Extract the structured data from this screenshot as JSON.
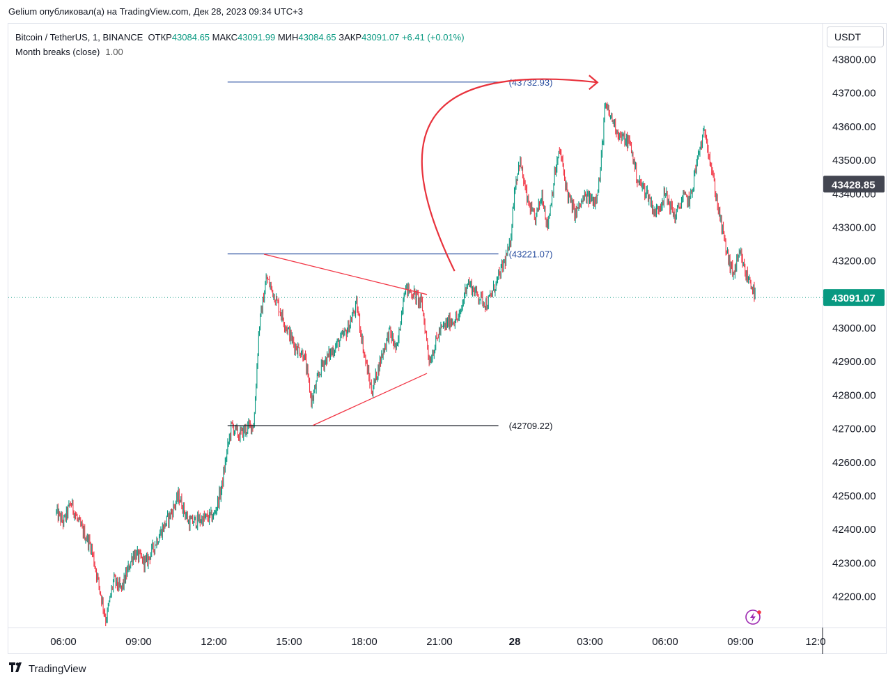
{
  "header": {
    "published_line": "Gelium опубликовал(а) на TradingView.com, Дек 28, 2023 09:34 UTC+3"
  },
  "legend": {
    "symbol": "Bitcoin / TetherUS, 1, BINANCE",
    "open_label": "ОТКР",
    "open_value": "43084.65",
    "high_label": "МАКС",
    "high_value": "43091.99",
    "low_label": "МИН",
    "low_value": "43084.65",
    "close_label": "ЗАКР",
    "close_value": "43091.07",
    "change": "+6.41 (+0.01%)",
    "indicator_name": "Month breaks (close)",
    "indicator_value": "1.00"
  },
  "currency_button": "USDT",
  "footer": {
    "brand": "TradingView"
  },
  "colors": {
    "up": "#089981",
    "down": "#f23645",
    "hline_blue": "#2a4fa0",
    "hline_black": "#131722",
    "arrow": "#e8323c",
    "triangle": "#f23645",
    "badge_price": "#089981",
    "badge_level": "#434651",
    "icon": "#9c27b0"
  },
  "chart_data": {
    "type": "candlestick",
    "ylim": [
      42090,
      43830
    ],
    "y_ticks": [
      42200,
      42300,
      42400,
      42500,
      42600,
      42700,
      42800,
      42900,
      43000,
      43100,
      43200,
      43300,
      43400,
      43500,
      43600,
      43700,
      43800
    ],
    "y_tick_labels": [
      "42200.00",
      "42300.00",
      "42400.00",
      "42500.00",
      "42600.00",
      "42700.00",
      "42800.00",
      "42900.00",
      "43000.00",
      "43100.00",
      "43200.00",
      "43300.00",
      "43400.00",
      "43500.00",
      "43600.00",
      "43700.00",
      "43800.00"
    ],
    "x_ticks": [
      "06:00",
      "09:00",
      "12:00",
      "15:00",
      "18:00",
      "21:00",
      "28",
      "03:00",
      "06:00",
      "09:00",
      "12:0"
    ],
    "x_tick_hours": [
      6,
      9,
      12,
      15,
      18,
      21,
      24,
      27,
      30,
      33,
      36
    ],
    "x_range_hours": [
      5.72,
      36.45
    ],
    "price_path": [
      [
        5.72,
        42450
      ],
      [
        6.0,
        42420
      ],
      [
        6.3,
        42480
      ],
      [
        6.6,
        42420
      ],
      [
        7.1,
        42350
      ],
      [
        7.4,
        42240
      ],
      [
        7.7,
        42130
      ],
      [
        8.0,
        42250
      ],
      [
        8.3,
        42220
      ],
      [
        8.8,
        42330
      ],
      [
        9.3,
        42300
      ],
      [
        9.8,
        42380
      ],
      [
        10.3,
        42450
      ],
      [
        10.6,
        42500
      ],
      [
        11.0,
        42420
      ],
      [
        11.5,
        42430
      ],
      [
        12.0,
        42440
      ],
      [
        12.3,
        42520
      ],
      [
        12.5,
        42620
      ],
      [
        12.7,
        42710
      ],
      [
        13.0,
        42680
      ],
      [
        13.3,
        42700
      ],
      [
        13.6,
        42715
      ],
      [
        13.8,
        43000
      ],
      [
        14.1,
        43150
      ],
      [
        14.4,
        43100
      ],
      [
        14.8,
        43020
      ],
      [
        15.2,
        42950
      ],
      [
        15.6,
        42920
      ],
      [
        15.9,
        42780
      ],
      [
        16.3,
        42890
      ],
      [
        16.8,
        42940
      ],
      [
        17.3,
        42990
      ],
      [
        17.7,
        43070
      ],
      [
        18.0,
        42920
      ],
      [
        18.3,
        42810
      ],
      [
        18.7,
        42920
      ],
      [
        19.0,
        42990
      ],
      [
        19.3,
        42930
      ],
      [
        19.6,
        43120
      ],
      [
        20.0,
        43100
      ],
      [
        20.3,
        43070
      ],
      [
        20.6,
        42900
      ],
      [
        21.0,
        42990
      ],
      [
        21.4,
        43020
      ],
      [
        21.8,
        43030
      ],
      [
        22.1,
        43140
      ],
      [
        22.5,
        43100
      ],
      [
        22.9,
        43070
      ],
      [
        23.3,
        43140
      ],
      [
        23.5,
        43180
      ],
      [
        23.8,
        43240
      ],
      [
        24.0,
        43420
      ],
      [
        24.2,
        43500
      ],
      [
        24.5,
        43380
      ],
      [
        24.8,
        43320
      ],
      [
        25.1,
        43400
      ],
      [
        25.3,
        43300
      ],
      [
        25.6,
        43460
      ],
      [
        25.8,
        43530
      ],
      [
        26.1,
        43400
      ],
      [
        26.4,
        43340
      ],
      [
        26.8,
        43390
      ],
      [
        27.2,
        43380
      ],
      [
        27.4,
        43450
      ],
      [
        27.6,
        43660
      ],
      [
        27.9,
        43620
      ],
      [
        28.2,
        43570
      ],
      [
        28.6,
        43550
      ],
      [
        28.9,
        43440
      ],
      [
        29.3,
        43400
      ],
      [
        29.6,
        43340
      ],
      [
        30.0,
        43400
      ],
      [
        30.4,
        43330
      ],
      [
        30.7,
        43390
      ],
      [
        31.0,
        43380
      ],
      [
        31.2,
        43470
      ],
      [
        31.4,
        43540
      ],
      [
        31.6,
        43590
      ],
      [
        31.9,
        43450
      ],
      [
        32.2,
        43320
      ],
      [
        32.5,
        43210
      ],
      [
        32.7,
        43160
      ],
      [
        33.0,
        43220
      ],
      [
        33.2,
        43160
      ],
      [
        33.4,
        43140
      ],
      [
        33.6,
        43091
      ]
    ],
    "annotations": {
      "levels": [
        {
          "label": "(43732.93)",
          "price": 43732.93,
          "x0": 12.55,
          "x1": 23.35,
          "color": "hline_blue"
        },
        {
          "label": "(43221.07)",
          "price": 43221.07,
          "x0": 12.55,
          "x1": 23.35,
          "color": "hline_blue"
        },
        {
          "label": "(42709.22)",
          "price": 42709.22,
          "x0": 12.55,
          "x1": 23.35,
          "color": "hline_black"
        }
      ],
      "triangle_upper": [
        [
          14.0,
          43220
        ],
        [
          20.5,
          43100
        ]
      ],
      "triangle_lower": [
        [
          15.95,
          42710
        ],
        [
          20.5,
          42865
        ]
      ],
      "arrow": {
        "from": [
          21.6,
          43170
        ],
        "ctrl": [
          19.8,
          43740
        ],
        "to": [
          27.3,
          43732
        ]
      },
      "last_price": {
        "label": "43091.07",
        "price": 43091.07
      },
      "level_badge": {
        "label": "43428.85",
        "price": 43428.85
      }
    }
  }
}
